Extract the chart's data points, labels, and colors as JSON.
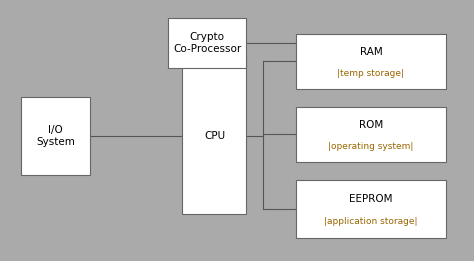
{
  "bg_color": "#aaaaaa",
  "box_color": "#ffffff",
  "box_edge": "#666666",
  "line_color": "#555555",
  "title_color": "#000000",
  "sub_color": "#996600",
  "font_size_main": 7.5,
  "font_size_sub": 6.5,
  "outer_bg": "#ffffff",
  "pos": {
    "io": [
      0.045,
      0.33,
      0.145,
      0.3
    ],
    "cpu": [
      0.385,
      0.18,
      0.135,
      0.6
    ],
    "crypto": [
      0.355,
      0.74,
      0.165,
      0.19
    ],
    "ram": [
      0.625,
      0.66,
      0.315,
      0.21
    ],
    "rom": [
      0.625,
      0.38,
      0.315,
      0.21
    ],
    "eeprom": [
      0.625,
      0.09,
      0.315,
      0.22
    ]
  },
  "labels": {
    "io": [
      "I/O\nSystem",
      null
    ],
    "cpu": [
      "CPU",
      null
    ],
    "crypto": [
      "Crypto\nCo-Processor",
      null
    ],
    "ram": [
      "RAM",
      "|temp storage|"
    ],
    "rom": [
      "ROM",
      "|operating system|"
    ],
    "eeprom": [
      "EEPROM",
      "|application storage|"
    ]
  }
}
